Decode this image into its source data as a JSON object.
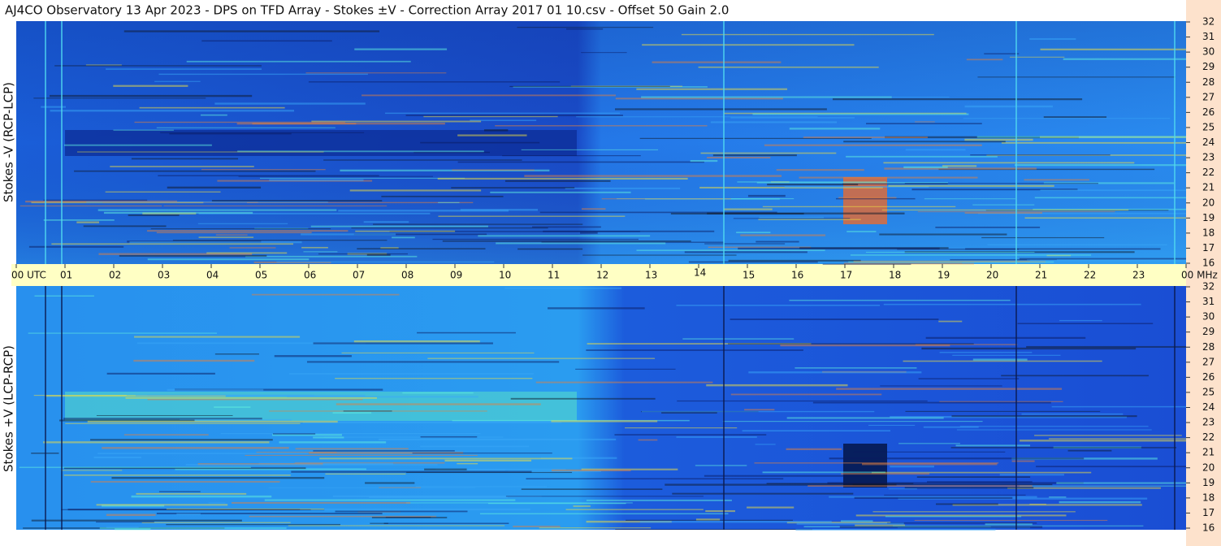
{
  "header": {
    "title": "AJ4CO Observatory  13 Apr 2023  -  DPS on TFD Array  -  Stokes ±V  -  Correction Array 2017 01 10.csv  -  Offset 50  Gain 2.0"
  },
  "panels": [
    {
      "label": "Stokes -V (RCP-LCP)",
      "freq_labels": [
        "32",
        "31",
        "30",
        "29",
        "28",
        "27",
        "26",
        "25",
        "24",
        "23",
        "22",
        "21",
        "20",
        "19",
        "18",
        "17",
        "16"
      ]
    },
    {
      "label": "Stokes +V (LCP-RCP)",
      "freq_labels": [
        "32",
        "31",
        "30",
        "29",
        "28",
        "27",
        "26",
        "25",
        "24",
        "23",
        "22",
        "21",
        "20",
        "19",
        "18",
        "17",
        "16"
      ]
    }
  ],
  "time_axis": {
    "labels": [
      "00 UTC",
      "01",
      "02",
      "03",
      "04",
      "05",
      "06",
      "07",
      "08",
      "09",
      "10",
      "11",
      "12",
      "13",
      "14",
      "15",
      "16",
      "17",
      "18",
      "19",
      "20",
      "21",
      "22",
      "23",
      "00 MHz"
    ]
  }
}
